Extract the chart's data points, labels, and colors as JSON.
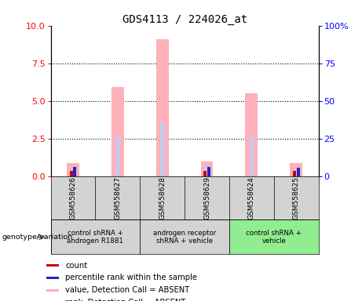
{
  "title": "GDS4113 / 224026_at",
  "samples": [
    "GSM558626",
    "GSM558627",
    "GSM558628",
    "GSM558629",
    "GSM558624",
    "GSM558625"
  ],
  "pink_values": [
    0.85,
    5.9,
    9.1,
    0.95,
    5.5,
    0.85
  ],
  "lavender_rank_values": [
    0.62,
    2.7,
    3.6,
    0.7,
    2.7,
    0.58
  ],
  "red_count": [
    0.32,
    0.0,
    0.0,
    0.32,
    0.0,
    0.32
  ],
  "blue_count": [
    0.62,
    0.0,
    0.0,
    0.62,
    0.0,
    0.58
  ],
  "ylim_left": [
    0,
    10
  ],
  "ylim_right": [
    0,
    100
  ],
  "yticks_left": [
    0,
    2.5,
    5.0,
    7.5,
    10
  ],
  "yticks_right": [
    0,
    25,
    50,
    75,
    100
  ],
  "groups": [
    {
      "cols": [
        0,
        1
      ],
      "label": "control shRNA +\nandrogen R1881",
      "color": "#d3d3d3"
    },
    {
      "cols": [
        2,
        3
      ],
      "label": "androgen receptor\nshRNA + vehicle",
      "color": "#d3d3d3"
    },
    {
      "cols": [
        4,
        5
      ],
      "label": "control shRNA +\nvehicle",
      "color": "#90ee90"
    }
  ],
  "pink_color": "#ffb0b8",
  "lavender_color": "#c8c8e8",
  "red_color": "#cc0000",
  "blue_color": "#2222cc",
  "sample_bg": "#d3d3d3",
  "plot_bg": "#ffffff"
}
